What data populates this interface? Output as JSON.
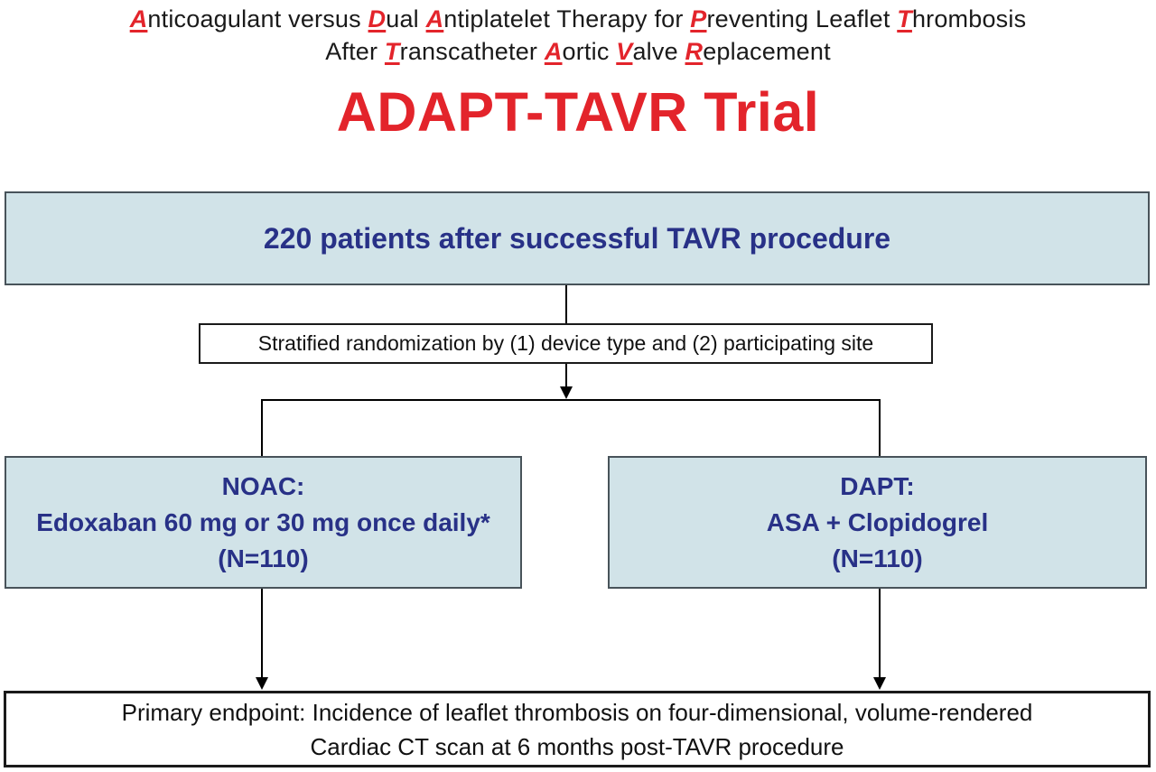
{
  "header": {
    "subtitle_line1": [
      {
        "t": "A",
        "accent": true
      },
      {
        "t": "nticoagulant versus ",
        "accent": false
      },
      {
        "t": "D",
        "accent": true
      },
      {
        "t": "ual ",
        "accent": false
      },
      {
        "t": "A",
        "accent": true
      },
      {
        "t": "ntiplatelet Therapy for ",
        "accent": false
      },
      {
        "t": "P",
        "accent": true
      },
      {
        "t": "reventing Leaflet ",
        "accent": false
      },
      {
        "t": "T",
        "accent": true
      },
      {
        "t": "hrombosis",
        "accent": false
      }
    ],
    "subtitle_line2": [
      {
        "t": "After ",
        "accent": false
      },
      {
        "t": "T",
        "accent": true
      },
      {
        "t": "ranscatheter ",
        "accent": false
      },
      {
        "t": "A",
        "accent": true
      },
      {
        "t": "ortic ",
        "accent": false
      },
      {
        "t": "V",
        "accent": true
      },
      {
        "t": "alve ",
        "accent": false
      },
      {
        "t": "R",
        "accent": true
      },
      {
        "t": "eplacement",
        "accent": false
      }
    ],
    "title": "ADAPT-TAVR Trial"
  },
  "flowchart": {
    "enrollment": {
      "text": "220 patients after successful TAVR procedure"
    },
    "randomization": {
      "text": "Stratified randomization by (1) device type and (2) participating site"
    },
    "noac_arm": {
      "lines": [
        "NOAC:",
        "Edoxaban 60 mg or 30 mg once daily*",
        "(N=110)"
      ]
    },
    "dapt_arm": {
      "lines": [
        "DAPT:",
        "ASA + Clopidogrel",
        "(N=110)"
      ]
    },
    "endpoint": {
      "lines": [
        "Primary endpoint: Incidence of leaflet thrombosis on four-dimensional, volume-rendered",
        "Cardiac CT scan at 6 months post-TAVR procedure"
      ]
    }
  },
  "colors": {
    "accent_red": "#e3242b",
    "navy_text": "#283187",
    "box_blue_fill": "#d1e3e8",
    "box_blue_border": "#48535a",
    "line_black": "#000000",
    "background": "#ffffff"
  }
}
